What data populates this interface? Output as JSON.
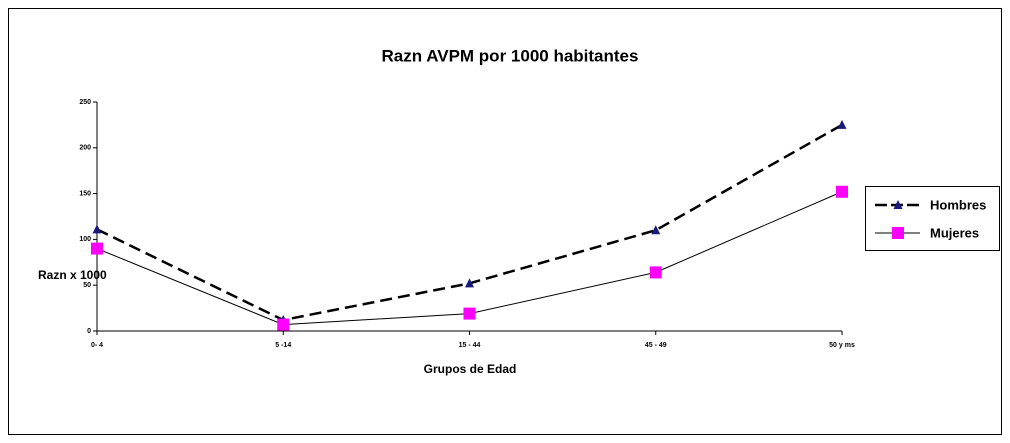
{
  "chart_data": {
    "type": "line",
    "title": "Razn AVPM por 1000 habitantes",
    "x_label": "Grupos de Edad",
    "y_label": "Razn x 1000",
    "categories": [
      "0- 4",
      "5 -14",
      "15 - 44",
      "45 - 49",
      "50 y ms"
    ],
    "series": [
      {
        "name": "Hombres",
        "color": "#1a1a7a",
        "marker": "triangle",
        "dashed": true,
        "values": [
          111,
          12,
          52,
          110,
          225
        ]
      },
      {
        "name": "Mujeres",
        "color": "#ff00ff",
        "marker": "square",
        "dashed": false,
        "values": [
          90,
          7,
          19,
          64,
          152
        ]
      }
    ],
    "ylim": [
      0,
      250
    ],
    "yticks": [
      0,
      50,
      100,
      150,
      200,
      250
    ]
  }
}
